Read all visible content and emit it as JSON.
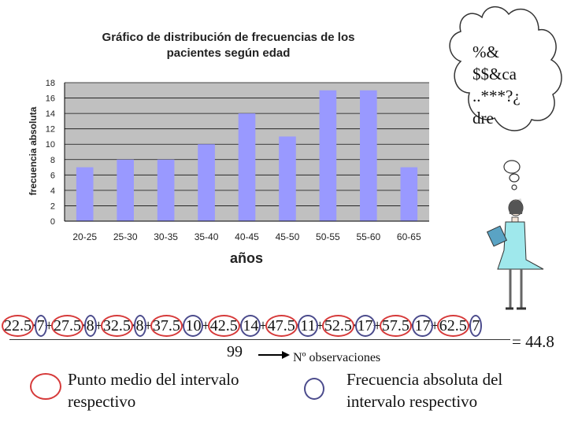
{
  "chart_data": {
    "type": "bar",
    "title": "Gráfico de distribución de frecuencias de los pacientes según edad",
    "xlabel": "años",
    "ylabel": "frecuencia absoluta",
    "categories": [
      "20-25",
      "25-30",
      "30-35",
      "35-40",
      "40-45",
      "45-50",
      "50-55",
      "55-60",
      "60-65"
    ],
    "values": [
      7,
      8,
      8,
      10,
      14,
      11,
      17,
      17,
      7
    ],
    "ylim": [
      0,
      18
    ],
    "yticks": [
      "0",
      "2",
      "4",
      "6",
      "8",
      "10",
      "12",
      "14",
      "16",
      "18"
    ],
    "grid": true,
    "bar_color": "#9999ff",
    "plot_background": "#c0c0c0"
  },
  "thought_cloud": {
    "text": "%&\n$$&ca\n..***?¿\ndre"
  },
  "formula": {
    "numerator": "22.5·7+27.5·8+32.5·8+37.5·10+42.5·14+47.5·11+52.5·17+57.5·17+62.5·7",
    "denominator": "99",
    "result": "= 44.8",
    "arrow_label": "Nº observaciones"
  },
  "legend": {
    "red_label": "Punto medio del intervalo respectivo",
    "blue_label": "Frecuencia absoluta del intervalo respectivo",
    "red_color": "#d63a3a",
    "blue_color": "#4b4b8c"
  }
}
